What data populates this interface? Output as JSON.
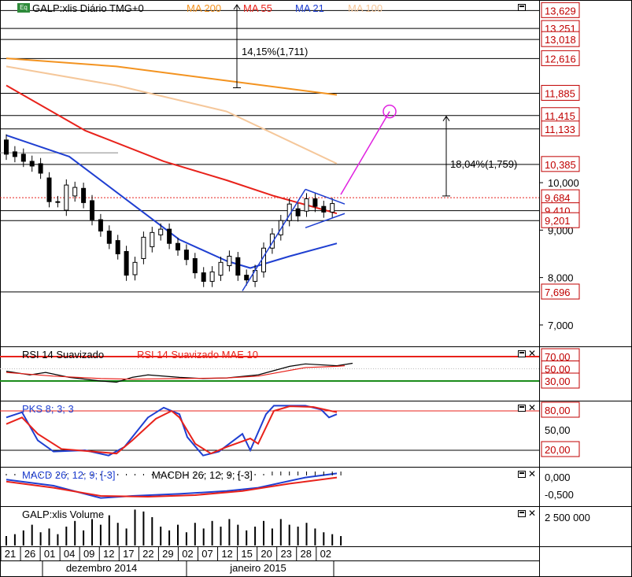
{
  "chart_data": {
    "type": "candlestick",
    "panels": [
      {
        "id": "price",
        "title": "GALP:xlis Diário TMG+0",
        "indicators": [
          {
            "name": "MA 200",
            "color": "#f39320"
          },
          {
            "name": "MA 55",
            "color": "#e8221b"
          },
          {
            "name": "MA 21",
            "color": "#1f3fd1"
          },
          {
            "name": "MA 100",
            "color": "#f5c79a"
          }
        ],
        "ylim": [
          6.55,
          13.85
        ],
        "y_ticks": [
          "7,000",
          "8,000",
          "9,000",
          "10,000"
        ],
        "price_labels": [
          "13,629",
          "13,251",
          "13,018",
          "12,616",
          "11,885",
          "11,415",
          "11,133",
          "10,385",
          "9,684",
          "9,410",
          "9,201",
          "7,696"
        ],
        "annotations": [
          "14,15%(1,711)",
          "18,04%(1,759)"
        ],
        "candles": [
          [
            10.9,
            10.6
          ],
          [
            10.65,
            10.55
          ],
          [
            10.6,
            10.45
          ],
          [
            10.45,
            10.35
          ],
          [
            10.4,
            10.2
          ],
          [
            10.1,
            9.6
          ],
          [
            9.6,
            9.6
          ],
          [
            9.42,
            9.95
          ],
          [
            9.72,
            9.9
          ],
          [
            9.88,
            9.58
          ],
          [
            9.62,
            9.22
          ],
          [
            9.22,
            8.98
          ],
          [
            8.98,
            8.72
          ],
          [
            8.78,
            8.5
          ],
          [
            8.55,
            8.05
          ],
          [
            8.06,
            8.32
          ],
          [
            8.4,
            8.85
          ],
          [
            8.65,
            8.95
          ],
          [
            8.9,
            9.02
          ],
          [
            9.02,
            8.72
          ],
          [
            8.72,
            8.58
          ],
          [
            8.58,
            8.38
          ],
          [
            8.4,
            8.1
          ],
          [
            8.1,
            7.92
          ],
          [
            7.92,
            8.12
          ],
          [
            8.05,
            8.32
          ],
          [
            8.25,
            8.45
          ],
          [
            8.42,
            8.05
          ],
          [
            8.05,
            7.95
          ],
          [
            7.92,
            8.15
          ],
          [
            8.12,
            8.62
          ],
          [
            8.62,
            8.92
          ],
          [
            8.9,
            9.2
          ],
          [
            9.2,
            9.55
          ],
          [
            9.45,
            9.3
          ],
          [
            9.4,
            9.66
          ],
          [
            9.66,
            9.5
          ],
          [
            9.5,
            9.38
          ],
          [
            9.38,
            9.56
          ]
        ],
        "ma200": [
          [
            0,
            12.62
          ],
          [
            14,
            12.45
          ],
          [
            28,
            12.15
          ],
          [
            42,
            11.85
          ]
        ],
        "ma100": [
          [
            0,
            12.45
          ],
          [
            14,
            12.05
          ],
          [
            28,
            11.5
          ],
          [
            42,
            10.4
          ]
        ],
        "ma55": [
          [
            0,
            12.05
          ],
          [
            10,
            11.1
          ],
          [
            20,
            10.45
          ],
          [
            28,
            10.05
          ],
          [
            34,
            9.72
          ],
          [
            42,
            9.35
          ]
        ],
        "ma21": [
          [
            0,
            11.0
          ],
          [
            8,
            10.55
          ],
          [
            16,
            9.55
          ],
          [
            22,
            8.8
          ],
          [
            28,
            8.35
          ],
          [
            31,
            8.2
          ],
          [
            36,
            8.45
          ],
          [
            42,
            8.72
          ]
        ]
      },
      {
        "id": "rsi",
        "title": "RSI 14 Suavizado",
        "signal": "RSI 14 Suavizado MAE 10",
        "levels": [
          "70,00",
          "50,00",
          "30,00"
        ]
      },
      {
        "id": "pks",
        "title": "PKS 8; 3; 3",
        "levels": [
          "80,00",
          "50,00",
          "20,00"
        ]
      },
      {
        "id": "macd",
        "title": "MACD 26; 12; 9; [-3]",
        "hist_title": "MACDH 26; 12; 9; [-3]",
        "levels": [
          "0,000",
          "-0,500"
        ]
      },
      {
        "id": "volume",
        "title": "GALP:xlis Volume",
        "levels": [
          "2 500 000"
        ]
      }
    ],
    "x_tick_labels": [
      "21",
      "26",
      "01",
      "04",
      "09",
      "12",
      "17",
      "22",
      "29",
      "02",
      "07",
      "12",
      "15",
      "20",
      "23",
      "28",
      "02"
    ],
    "month_labels": [
      "dezembro 2014",
      "janeiro 2015"
    ]
  },
  "colors": {
    "price_label": "#c00000",
    "grid": "#cccccc",
    "trend": "#1f3fd1",
    "projection": "#e020e0",
    "ma200": "#f39320",
    "ma100": "#f5c79a",
    "ma55": "#e8221b",
    "ma21": "#1f3fd1"
  },
  "icons": {
    "expand": "maximize-icon",
    "close": "close-icon",
    "dropdown": "chevron-down-icon"
  }
}
